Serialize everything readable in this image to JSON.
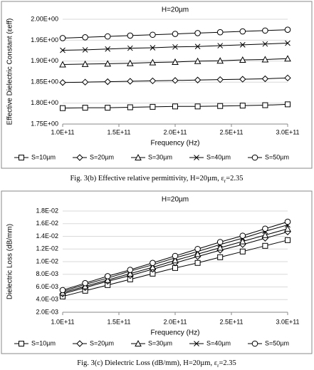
{
  "chart_data": [
    {
      "type": "line",
      "title": "H=20µm",
      "x_label": "Frequency (Hz)",
      "y_label": "Effective Dielectric Constant (εeff)",
      "x": [
        100000000000,
        120000000000,
        140000000000,
        160000000000,
        180000000000,
        200000000000,
        220000000000,
        240000000000,
        260000000000,
        280000000000,
        300000000000
      ],
      "xlim": [
        100000000000,
        300000000000
      ],
      "xticks": [
        {
          "value": 100000000000,
          "label": "1.0E+11"
        },
        {
          "value": 150000000000,
          "label": "1.5E+11"
        },
        {
          "value": 200000000000,
          "label": "2.0E+11"
        },
        {
          "value": 250000000000,
          "label": "2.5E+11"
        },
        {
          "value": 300000000000,
          "label": "3.0E+11"
        }
      ],
      "ylim": [
        1.75,
        2.0
      ],
      "yticks": [
        {
          "value": 1.75,
          "label": "1.75E+00"
        },
        {
          "value": 1.8,
          "label": "1.80E+00"
        },
        {
          "value": 1.85,
          "label": "1.85E+00"
        },
        {
          "value": 1.9,
          "label": "1.90E+00"
        },
        {
          "value": 1.95,
          "label": "1.95E+00"
        },
        {
          "value": 2.0,
          "label": "2.00E+00"
        }
      ],
      "grid": true,
      "legend": "bottom",
      "series": [
        {
          "name": "S=10µm",
          "color": "#000000",
          "marker": "square",
          "values": [
            1.788,
            1.789,
            1.789,
            1.79,
            1.791,
            1.792,
            1.792,
            1.793,
            1.794,
            1.795,
            1.797
          ]
        },
        {
          "name": "S=20µm",
          "color": "#000000",
          "marker": "diamond",
          "values": [
            1.849,
            1.85,
            1.851,
            1.852,
            1.853,
            1.854,
            1.855,
            1.856,
            1.857,
            1.858,
            1.86
          ]
        },
        {
          "name": "S=30µm",
          "color": "#000000",
          "marker": "triangle",
          "values": [
            1.892,
            1.893,
            1.894,
            1.895,
            1.897,
            1.898,
            1.9,
            1.901,
            1.903,
            1.904,
            1.906
          ]
        },
        {
          "name": "S=40µm",
          "color": "#000000",
          "marker": "x",
          "values": [
            1.926,
            1.927,
            1.929,
            1.931,
            1.932,
            1.934,
            1.935,
            1.937,
            1.939,
            1.941,
            1.943
          ]
        },
        {
          "name": "S=50µm",
          "color": "#000000",
          "marker": "circle",
          "values": [
            1.955,
            1.957,
            1.959,
            1.961,
            1.963,
            1.965,
            1.967,
            1.969,
            1.971,
            1.973,
            1.975
          ]
        }
      ]
    },
    {
      "type": "line",
      "title": "H=20µm",
      "x_label": "Frequency (Hz)",
      "y_label": "Dielectric Loss (dB/mm)",
      "x": [
        100000000000,
        120000000000,
        140000000000,
        160000000000,
        180000000000,
        200000000000,
        220000000000,
        240000000000,
        260000000000,
        280000000000,
        300000000000
      ],
      "xlim": [
        100000000000,
        300000000000
      ],
      "xticks": [
        {
          "value": 100000000000,
          "label": "1.0E+11"
        },
        {
          "value": 150000000000,
          "label": "1.5E+11"
        },
        {
          "value": 200000000000,
          "label": "2.0E+11"
        },
        {
          "value": 250000000000,
          "label": "2.5E+11"
        },
        {
          "value": 300000000000,
          "label": "3.0E+11"
        }
      ],
      "ylim": [
        0.002,
        0.018
      ],
      "yticks": [
        {
          "value": 0.002,
          "label": "2.0E-03"
        },
        {
          "value": 0.004,
          "label": "4.0E-03"
        },
        {
          "value": 0.006,
          "label": "6.0E-03"
        },
        {
          "value": 0.008,
          "label": "8.0E-03"
        },
        {
          "value": 0.01,
          "label": "1.0E-02"
        },
        {
          "value": 0.012,
          "label": "1.2E-02"
        },
        {
          "value": 0.014,
          "label": "1.4E-02"
        },
        {
          "value": 0.016,
          "label": "1.6E-02"
        },
        {
          "value": 0.018,
          "label": "1.8E-02"
        }
      ],
      "grid": true,
      "legend": "bottom",
      "series": [
        {
          "name": "S=10µm",
          "color": "#000000",
          "marker": "square",
          "values": [
            0.0045,
            0.0054,
            0.0063,
            0.0072,
            0.0081,
            0.009,
            0.0098,
            0.0107,
            0.0116,
            0.0125,
            0.0134
          ]
        },
        {
          "name": "S=20µm",
          "color": "#000000",
          "marker": "diamond",
          "values": [
            0.0049,
            0.0059,
            0.0069,
            0.0078,
            0.0088,
            0.0098,
            0.0108,
            0.0118,
            0.0127,
            0.0137,
            0.0147
          ]
        },
        {
          "name": "S=30µm",
          "color": "#000000",
          "marker": "triangle",
          "values": [
            0.0051,
            0.0061,
            0.0071,
            0.0081,
            0.0091,
            0.0102,
            0.0112,
            0.0122,
            0.0132,
            0.0142,
            0.0152
          ]
        },
        {
          "name": "S=40µm",
          "color": "#000000",
          "marker": "x",
          "values": [
            0.0053,
            0.0064,
            0.0074,
            0.0085,
            0.0095,
            0.0106,
            0.0116,
            0.0127,
            0.0137,
            0.0148,
            0.0158
          ]
        },
        {
          "name": "S=50µm",
          "color": "#000000",
          "marker": "circle",
          "values": [
            0.0055,
            0.0066,
            0.0077,
            0.0087,
            0.0098,
            0.0109,
            0.012,
            0.0131,
            0.0141,
            0.0152,
            0.0163
          ]
        }
      ]
    }
  ],
  "captions": [
    {
      "text": "Fig. 3(b) Effective relative permittivity,  H=20µm, ε",
      "sub": "r",
      "after": "=2.35"
    },
    {
      "text": "Fig. 3(c) Dielectric Loss (dB/mm), H=20µm, ε",
      "sub": "r",
      "after": "=2.35"
    }
  ]
}
